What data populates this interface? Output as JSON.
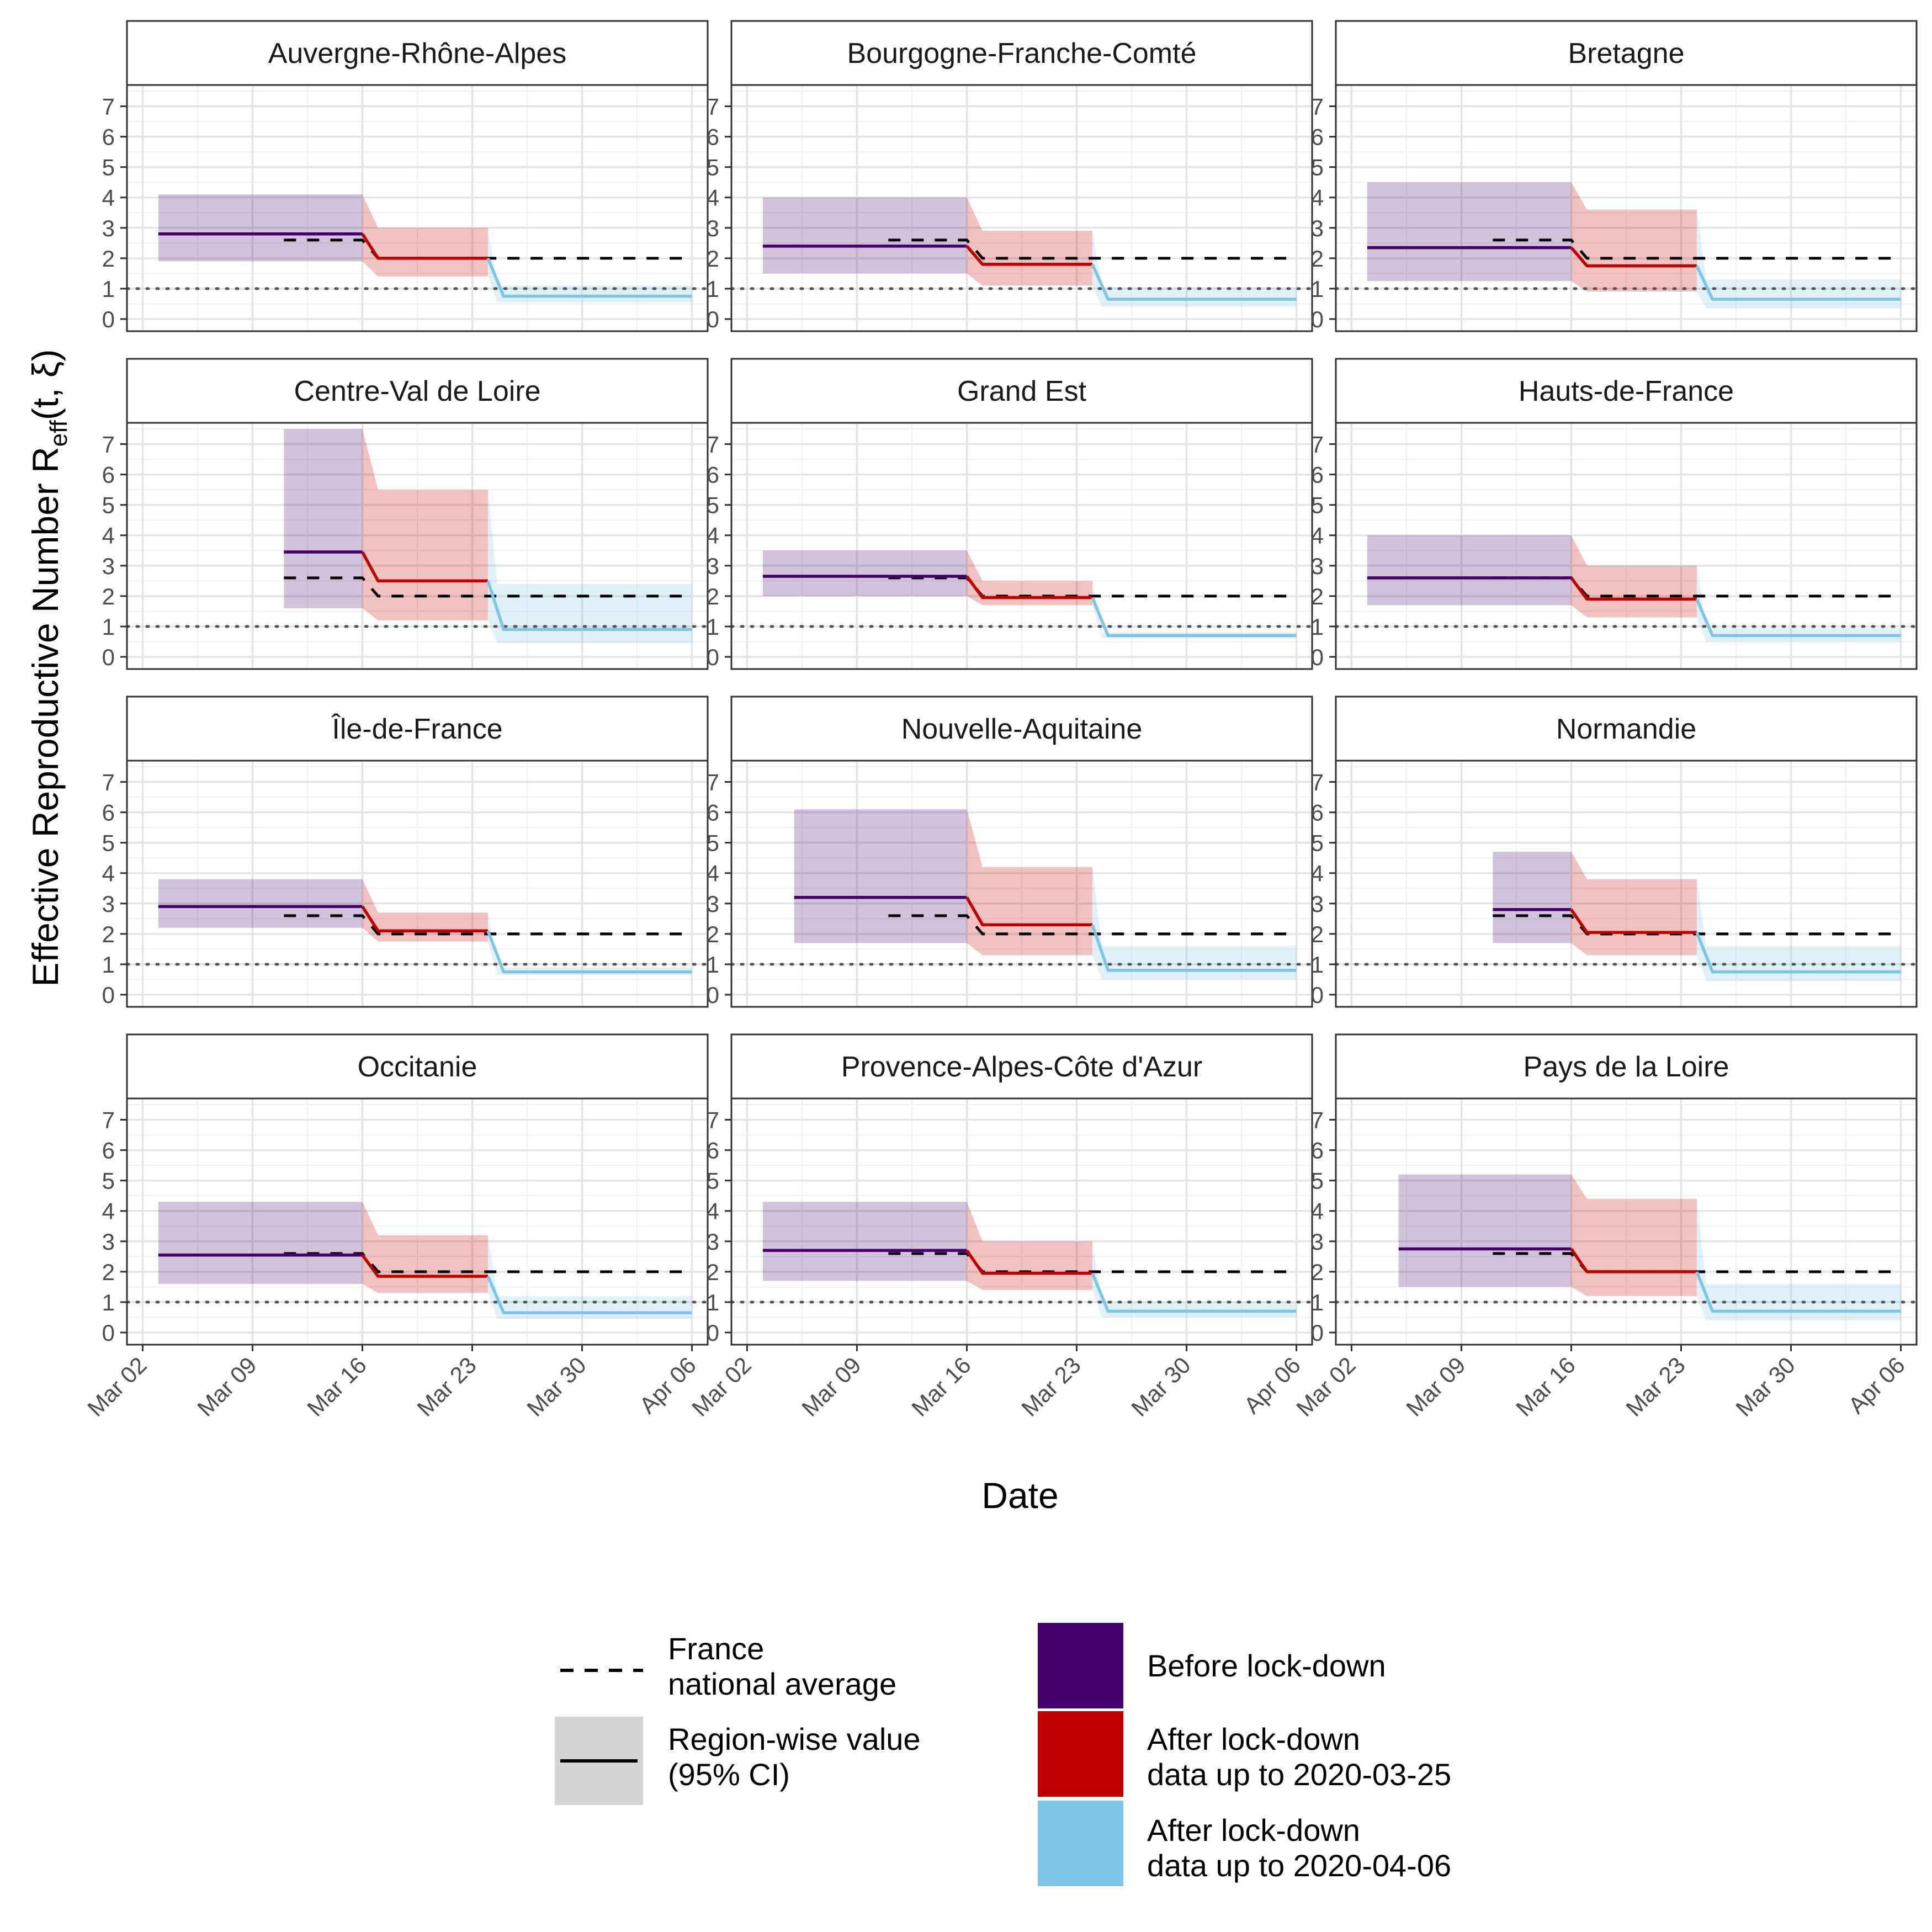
{
  "chart_data": {
    "type": "line",
    "ylabel": "Effective Reproductive Number R_eff(t, ξ)",
    "ylabel_parts": {
      "main": "Effective Reproductive Number R",
      "sub": "eff",
      "args": "(t, ξ)"
    },
    "xlabel": "Date",
    "x_ticks": [
      "Mar 02",
      "Mar 09",
      "Mar 16",
      "Mar 23",
      "Mar 30",
      "Apr 06"
    ],
    "y_ticks": [
      "0",
      "1",
      "2",
      "3",
      "4",
      "5",
      "6",
      "7"
    ],
    "ylim": [
      -0.4,
      7.7
    ],
    "xlim": [
      "2020-03-01",
      "2020-04-07"
    ],
    "reference_line_y": 1,
    "grid": true,
    "layout": "facet grid 4 rows x 3 columns",
    "colors": {
      "before": "#46006E",
      "after_0325": "#C00000",
      "after_0406": "#7DC5E6",
      "national": "#000000",
      "reference": "#555555"
    },
    "national_average": [
      {
        "start": "2020-03-11",
        "end": "2020-03-16",
        "value": 2.6
      },
      {
        "start": "2020-03-17",
        "end": "2020-04-06",
        "value": 2.0
      }
    ],
    "regions": [
      {
        "name": "Auvergne-Rhône-Alpes",
        "start": "2020-03-03",
        "before": [
          2.8,
          1.9,
          4.1
        ],
        "after1": [
          2.0,
          1.4,
          3.0
        ],
        "after2": [
          0.75,
          0.55,
          1.1
        ]
      },
      {
        "name": "Bourgogne-Franche-Comté",
        "start": "2020-03-03",
        "before": [
          2.4,
          1.5,
          4.0
        ],
        "after1": [
          1.8,
          1.1,
          2.9
        ],
        "after2": [
          0.65,
          0.4,
          1.05
        ]
      },
      {
        "name": "Bretagne",
        "start": "2020-03-03",
        "before": [
          2.35,
          1.25,
          4.5
        ],
        "after1": [
          1.75,
          0.9,
          3.6
        ],
        "after2": [
          0.65,
          0.35,
          1.3
        ]
      },
      {
        "name": "Centre-Val de Loire",
        "start": "2020-03-11",
        "before": [
          3.45,
          1.6,
          7.5
        ],
        "after1": [
          2.5,
          1.2,
          5.5
        ],
        "after2": [
          0.9,
          0.45,
          2.4
        ]
      },
      {
        "name": "Grand Est",
        "start": "2020-03-03",
        "before": [
          2.65,
          2.0,
          3.5
        ],
        "after1": [
          1.95,
          1.7,
          2.5
        ],
        "after2": [
          0.7,
          0.62,
          0.8
        ]
      },
      {
        "name": "Hauts-de-France",
        "start": "2020-03-03",
        "before": [
          2.6,
          1.7,
          4.0
        ],
        "after1": [
          1.9,
          1.3,
          3.0
        ],
        "after2": [
          0.7,
          0.5,
          0.95
        ]
      },
      {
        "name": "Île-de-France",
        "start": "2020-03-03",
        "before": [
          2.9,
          2.2,
          3.8
        ],
        "after1": [
          2.1,
          1.75,
          2.7
        ],
        "after2": [
          0.75,
          0.65,
          0.9
        ]
      },
      {
        "name": "Nouvelle-Aquitaine",
        "start": "2020-03-05",
        "before": [
          3.2,
          1.7,
          6.1
        ],
        "after1": [
          2.3,
          1.3,
          4.2
        ],
        "after2": [
          0.8,
          0.5,
          1.6
        ]
      },
      {
        "name": "Normandie",
        "start": "2020-03-11",
        "before": [
          2.8,
          1.7,
          4.7
        ],
        "after1": [
          2.05,
          1.3,
          3.8
        ],
        "after2": [
          0.75,
          0.45,
          1.6
        ]
      },
      {
        "name": "Occitanie",
        "start": "2020-03-03",
        "before": [
          2.55,
          1.6,
          4.3
        ],
        "after1": [
          1.85,
          1.3,
          3.2
        ],
        "after2": [
          0.65,
          0.45,
          1.2
        ]
      },
      {
        "name": "Provence-Alpes-Côte d'Azur",
        "start": "2020-03-03",
        "before": [
          2.7,
          1.7,
          4.3
        ],
        "after1": [
          1.95,
          1.4,
          3.0
        ],
        "after2": [
          0.7,
          0.5,
          1.0
        ]
      },
      {
        "name": "Pays de la Loire",
        "start": "2020-03-05",
        "before": [
          2.75,
          1.5,
          5.2
        ],
        "after1": [
          2.0,
          1.2,
          4.4
        ],
        "after2": [
          0.7,
          0.4,
          1.6
        ]
      }
    ]
  },
  "legend": {
    "national_label_line1": "France",
    "national_label_line2": "national average",
    "region_label_line1": "Region-wise value",
    "region_label_line2": "(95% CI)",
    "before_label": "Before lock-down",
    "after1_label_line1": "After lock-down",
    "after1_label_line2": "data up to 2020-03-25",
    "after2_label_line1": "After lock-down",
    "after2_label_line2": "data up to 2020-04-06"
  }
}
